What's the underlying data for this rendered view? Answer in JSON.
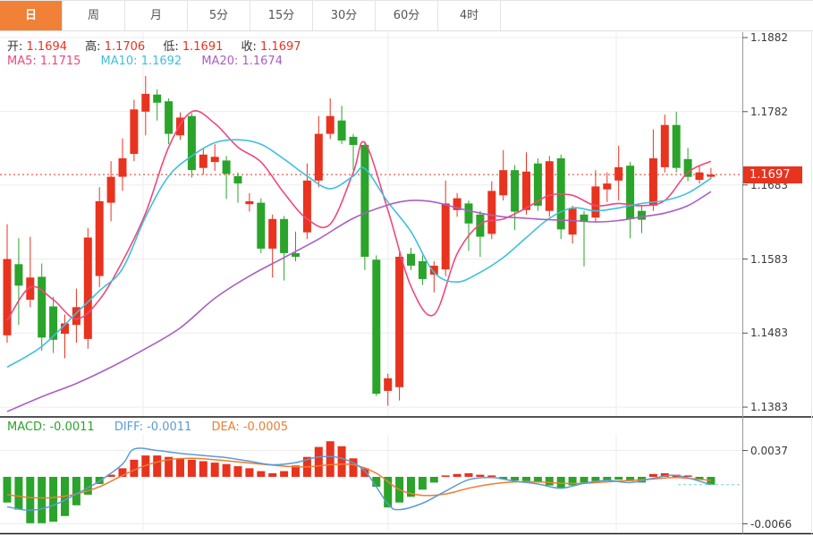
{
  "tabs": {
    "items": [
      {
        "label": "日",
        "name": "tab-day",
        "active": true
      },
      {
        "label": "周",
        "name": "tab-week",
        "active": false
      },
      {
        "label": "月",
        "name": "tab-month",
        "active": false
      },
      {
        "label": "5分",
        "name": "tab-5min",
        "active": false
      },
      {
        "label": "15分",
        "name": "tab-15min",
        "active": false
      },
      {
        "label": "30分",
        "name": "tab-30min",
        "active": false
      },
      {
        "label": "60分",
        "name": "tab-60min",
        "active": false
      },
      {
        "label": "4时",
        "name": "tab-4hour",
        "active": false
      }
    ]
  },
  "legend": {
    "open_label": "开:",
    "open_value": "1.1694",
    "high_label": "高:",
    "high_value": "1.1706",
    "low_label": "低:",
    "low_value": "1.1691",
    "close_label": "收:",
    "close_value": "1.1697",
    "ma5_text": "MA5: 1.1715",
    "ma10_text": "MA10: 1.1692",
    "ma20_text": "MA20: 1.1674"
  },
  "macd_legend": {
    "macd_text": "MACD: -0.0011",
    "diff_text": "DIFF: -0.0011",
    "dea_text": "DEA: -0.0005"
  },
  "price_axis": {
    "ticks": [
      "1.1882",
      "1.1782",
      "1.1683",
      "1.1583",
      "1.1483",
      "1.1383"
    ],
    "current_label": "1.1697",
    "current_price": 1.1697
  },
  "macd_axis": {
    "ticks": [
      "0.0037",
      "-0.0066"
    ]
  },
  "colors": {
    "up": "#e8331f",
    "down": "#2aa42a",
    "tab_active_bg": "#f08136",
    "ma5": "#f0487c",
    "ma10": "#3fc0dc",
    "ma20": "#a95fc4",
    "diff_line": "#5b9bd5",
    "dea_line": "#ed7d31",
    "badge_bg": "#e8331f",
    "grid": "#ececec",
    "axis": "#999999"
  },
  "chart_data": {
    "type": "candlestick",
    "title": "",
    "legend_position": "top-left",
    "grid": true,
    "main": {
      "ylim": [
        1.1383,
        1.1882
      ],
      "y_ticks": [
        1.1882,
        1.1782,
        1.1683,
        1.1583,
        1.1483,
        1.1383
      ],
      "current_price": 1.1697,
      "candles_ohlc": [
        [
          1.148,
          1.163,
          1.147,
          1.1583
        ],
        [
          1.1576,
          1.1611,
          1.1494,
          1.1547
        ],
        [
          1.1528,
          1.1613,
          1.1518,
          1.1558
        ],
        [
          1.1559,
          1.1577,
          1.1459,
          1.1477
        ],
        [
          1.1519,
          1.1532,
          1.1456,
          1.1474
        ],
        [
          1.1482,
          1.1508,
          1.1449,
          1.1496
        ],
        [
          1.1494,
          1.1543,
          1.147,
          1.1518
        ],
        [
          1.1475,
          1.1625,
          1.1462,
          1.1612
        ],
        [
          1.156,
          1.168,
          1.1545,
          1.1661
        ],
        [
          1.1659,
          1.1715,
          1.1634,
          1.1694
        ],
        [
          1.1694,
          1.1746,
          1.1675,
          1.1719
        ],
        [
          1.1725,
          1.1798,
          1.1715,
          1.1785
        ],
        [
          1.1782,
          1.183,
          1.175,
          1.1806
        ],
        [
          1.1805,
          1.1812,
          1.177,
          1.1794
        ],
        [
          1.1796,
          1.18,
          1.1738,
          1.1752
        ],
        [
          1.175,
          1.1781,
          1.1744,
          1.1774
        ],
        [
          1.1776,
          1.178,
          1.1693,
          1.1703
        ],
        [
          1.1706,
          1.1732,
          1.1697,
          1.1724
        ],
        [
          1.1714,
          1.1738,
          1.1702,
          1.1721
        ],
        [
          1.1716,
          1.1722,
          1.1664,
          1.1698
        ],
        [
          1.1695,
          1.17,
          1.1659,
          1.1685
        ],
        [
          1.1657,
          1.1672,
          1.1647,
          1.1661
        ],
        [
          1.1659,
          1.1665,
          1.1591,
          1.1597
        ],
        [
          1.1597,
          1.1643,
          1.1558,
          1.1637
        ],
        [
          1.1637,
          1.1641,
          1.1554,
          1.1591
        ],
        [
          1.1591,
          1.162,
          1.158,
          1.1586
        ],
        [
          1.1619,
          1.1712,
          1.161,
          1.1689
        ],
        [
          1.1689,
          1.1776,
          1.168,
          1.1752
        ],
        [
          1.1752,
          1.18,
          1.1745,
          1.1776
        ],
        [
          1.177,
          1.179,
          1.1738,
          1.1743
        ],
        [
          1.1748,
          1.1752,
          1.1703,
          1.1737
        ],
        [
          1.1737,
          1.1742,
          1.1568,
          1.1586
        ],
        [
          1.1582,
          1.1588,
          1.1398,
          1.1401
        ],
        [
          1.1405,
          1.1428,
          1.1385,
          1.1422
        ],
        [
          1.141,
          1.1592,
          1.1392,
          1.1586
        ],
        [
          1.159,
          1.1598,
          1.1568,
          1.1574
        ],
        [
          1.158,
          1.1588,
          1.1548,
          1.1556
        ],
        [
          1.1562,
          1.158,
          1.1538,
          1.1574
        ],
        [
          1.1569,
          1.1689,
          1.156,
          1.1658
        ],
        [
          1.1649,
          1.1672,
          1.164,
          1.1665
        ],
        [
          1.1658,
          1.1662,
          1.1594,
          1.1631
        ],
        [
          1.1643,
          1.1648,
          1.1586,
          1.1613
        ],
        [
          1.1617,
          1.1688,
          1.161,
          1.1675
        ],
        [
          1.1669,
          1.173,
          1.1662,
          1.1703
        ],
        [
          1.1703,
          1.171,
          1.1622,
          1.1647
        ],
        [
          1.1649,
          1.1727,
          1.1643,
          1.1701
        ],
        [
          1.1712,
          1.1719,
          1.1648,
          1.1655
        ],
        [
          1.1648,
          1.1722,
          1.164,
          1.1715
        ],
        [
          1.1719,
          1.1724,
          1.161,
          1.1623
        ],
        [
          1.1616,
          1.1655,
          1.1604,
          1.1651
        ],
        [
          1.1643,
          1.1648,
          1.1573,
          1.1633
        ],
        [
          1.1639,
          1.1703,
          1.1632,
          1.1681
        ],
        [
          1.1677,
          1.17,
          1.166,
          1.1685
        ],
        [
          1.1689,
          1.1736,
          1.1662,
          1.1707
        ],
        [
          1.1709,
          1.1714,
          1.1611,
          1.1637
        ],
        [
          1.1648,
          1.1655,
          1.1618,
          1.1636
        ],
        [
          1.1655,
          1.1758,
          1.1648,
          1.1719
        ],
        [
          1.1707,
          1.1778,
          1.17,
          1.1764
        ],
        [
          1.1764,
          1.1782,
          1.17,
          1.1706
        ],
        [
          1.1718,
          1.1733,
          1.1688,
          1.1694
        ],
        [
          1.169,
          1.171,
          1.1685,
          1.17
        ],
        [
          1.1694,
          1.1706,
          1.1691,
          1.1697
        ]
      ],
      "ma5": [
        [
          0,
          1.15
        ],
        [
          2,
          1.1545
        ],
        [
          4,
          1.1528
        ],
        [
          6,
          1.1502
        ],
        [
          8,
          1.1528
        ],
        [
          10,
          1.158
        ],
        [
          12,
          1.1645
        ],
        [
          14,
          1.1734
        ],
        [
          16,
          1.1782
        ],
        [
          18,
          1.1766
        ],
        [
          20,
          1.1734
        ],
        [
          22,
          1.1714
        ],
        [
          24,
          1.1672
        ],
        [
          26,
          1.1637
        ],
        [
          28,
          1.163
        ],
        [
          30,
          1.17
        ],
        [
          31,
          1.174
        ],
        [
          33,
          1.1649
        ],
        [
          35,
          1.1546
        ],
        [
          37,
          1.1508
        ],
        [
          39,
          1.159
        ],
        [
          41,
          1.163
        ],
        [
          43,
          1.1637
        ],
        [
          45,
          1.1652
        ],
        [
          47,
          1.1669
        ],
        [
          49,
          1.1669
        ],
        [
          51,
          1.1655
        ],
        [
          53,
          1.1658
        ],
        [
          55,
          1.1655
        ],
        [
          57,
          1.1662
        ],
        [
          59,
          1.17
        ],
        [
          61,
          1.1715
        ]
      ],
      "ma10": [
        [
          0,
          1.1437
        ],
        [
          3,
          1.1465
        ],
        [
          6,
          1.151
        ],
        [
          8,
          1.154
        ],
        [
          10,
          1.157
        ],
        [
          12,
          1.164
        ],
        [
          14,
          1.1695
        ],
        [
          16,
          1.1722
        ],
        [
          18,
          1.174
        ],
        [
          20,
          1.1744
        ],
        [
          22,
          1.1738
        ],
        [
          24,
          1.1718
        ],
        [
          26,
          1.1695
        ],
        [
          28,
          1.1678
        ],
        [
          30,
          1.1695
        ],
        [
          31,
          1.1705
        ],
        [
          33,
          1.166
        ],
        [
          35,
          1.162
        ],
        [
          37,
          1.1565
        ],
        [
          39,
          1.1552
        ],
        [
          41,
          1.1565
        ],
        [
          43,
          1.1585
        ],
        [
          45,
          1.1612
        ],
        [
          47,
          1.1638
        ],
        [
          49,
          1.1652
        ],
        [
          51,
          1.1648
        ],
        [
          53,
          1.1652
        ],
        [
          55,
          1.1658
        ],
        [
          57,
          1.1662
        ],
        [
          59,
          1.1672
        ],
        [
          61,
          1.1692
        ]
      ],
      "ma20": [
        [
          0,
          1.1377
        ],
        [
          3,
          1.1397
        ],
        [
          6,
          1.1415
        ],
        [
          9,
          1.1437
        ],
        [
          12,
          1.1462
        ],
        [
          15,
          1.149
        ],
        [
          18,
          1.153
        ],
        [
          21,
          1.156
        ],
        [
          24,
          1.1585
        ],
        [
          27,
          1.161
        ],
        [
          30,
          1.1638
        ],
        [
          33,
          1.1656
        ],
        [
          35,
          1.1662
        ],
        [
          37,
          1.166
        ],
        [
          39,
          1.1652
        ],
        [
          41,
          1.1645
        ],
        [
          43,
          1.164
        ],
        [
          45,
          1.1638
        ],
        [
          47,
          1.1636
        ],
        [
          49,
          1.1635
        ],
        [
          51,
          1.1633
        ],
        [
          53,
          1.1635
        ],
        [
          55,
          1.164
        ],
        [
          57,
          1.1645
        ],
        [
          59,
          1.1655
        ],
        [
          61,
          1.1674
        ]
      ],
      "vertical_gridline_x": [
        160,
        434,
        689
      ]
    },
    "macd": {
      "ylim": [
        -0.0066,
        0.0037
      ],
      "y_ticks": [
        0.0037,
        -0.0066
      ],
      "histogram": [
        -0.0036,
        -0.0046,
        -0.0065,
        -0.0065,
        -0.0063,
        -0.0055,
        -0.004,
        -0.0025,
        -0.001,
        0.0003,
        0.0012,
        0.0024,
        0.003,
        0.003,
        0.0028,
        0.0026,
        0.0024,
        0.0022,
        0.002,
        0.0018,
        0.0015,
        0.0012,
        0.0008,
        0.0005,
        0.0008,
        0.0016,
        0.0028,
        0.0042,
        0.005,
        0.0043,
        0.0026,
        0.0012,
        -0.0014,
        -0.0043,
        -0.0036,
        -0.0028,
        -0.0018,
        -0.0008,
        0.0002,
        0.0004,
        0.0005,
        0.0003,
        0.0002,
        -0.0003,
        -0.0005,
        -0.0006,
        -0.0008,
        -0.0012,
        -0.0016,
        -0.0012,
        -0.0008,
        -0.0006,
        -0.0005,
        -0.0004,
        -0.0006,
        -0.0008,
        0.0004,
        0.0005,
        0.0003,
        0.0002,
        -0.0004,
        -0.0011
      ],
      "diff": [
        [
          0,
          -0.0042
        ],
        [
          2,
          -0.0047
        ],
        [
          4,
          -0.004
        ],
        [
          6,
          -0.0024
        ],
        [
          8,
          -0.0006
        ],
        [
          10,
          0.0018
        ],
        [
          11,
          0.0039
        ],
        [
          13,
          0.0037
        ],
        [
          15,
          0.0033
        ],
        [
          17,
          0.003
        ],
        [
          19,
          0.0027
        ],
        [
          21,
          0.0022
        ],
        [
          23,
          0.0017
        ],
        [
          25,
          0.002
        ],
        [
          27,
          0.0028
        ],
        [
          29,
          0.0026
        ],
        [
          31,
          0.0008
        ],
        [
          33,
          -0.0038
        ],
        [
          34,
          -0.0046
        ],
        [
          36,
          -0.0037
        ],
        [
          38,
          -0.002
        ],
        [
          40,
          -0.0004
        ],
        [
          42,
          -0.0001
        ],
        [
          44,
          -0.0006
        ],
        [
          46,
          -0.001
        ],
        [
          48,
          -0.0016
        ],
        [
          50,
          -0.0009
        ],
        [
          52,
          -0.0005
        ],
        [
          54,
          -0.0008
        ],
        [
          56,
          -0.0002
        ],
        [
          58,
          0.0002
        ],
        [
          61,
          -0.0011
        ]
      ],
      "dea": [
        [
          0,
          -0.0025
        ],
        [
          2,
          -0.0029
        ],
        [
          4,
          -0.0029
        ],
        [
          6,
          -0.0024
        ],
        [
          8,
          -0.0014
        ],
        [
          10,
          0.0002
        ],
        [
          12,
          0.0016
        ],
        [
          14,
          0.0024
        ],
        [
          16,
          0.0026
        ],
        [
          18,
          0.0024
        ],
        [
          20,
          0.0021
        ],
        [
          22,
          0.0018
        ],
        [
          24,
          0.0015
        ],
        [
          26,
          0.0014
        ],
        [
          28,
          0.0017
        ],
        [
          30,
          0.0017
        ],
        [
          32,
          0.0005
        ],
        [
          34,
          -0.0018
        ],
        [
          36,
          -0.0026
        ],
        [
          38,
          -0.0024
        ],
        [
          40,
          -0.0016
        ],
        [
          42,
          -0.001
        ],
        [
          44,
          -0.0007
        ],
        [
          46,
          -0.0007
        ],
        [
          48,
          -0.0009
        ],
        [
          50,
          -0.0009
        ],
        [
          52,
          -0.0007
        ],
        [
          54,
          -0.0005
        ],
        [
          56,
          -0.0003
        ],
        [
          58,
          -0.0001
        ],
        [
          61,
          -0.0005
        ]
      ],
      "last_diff_dashed_level": -0.0011
    }
  }
}
